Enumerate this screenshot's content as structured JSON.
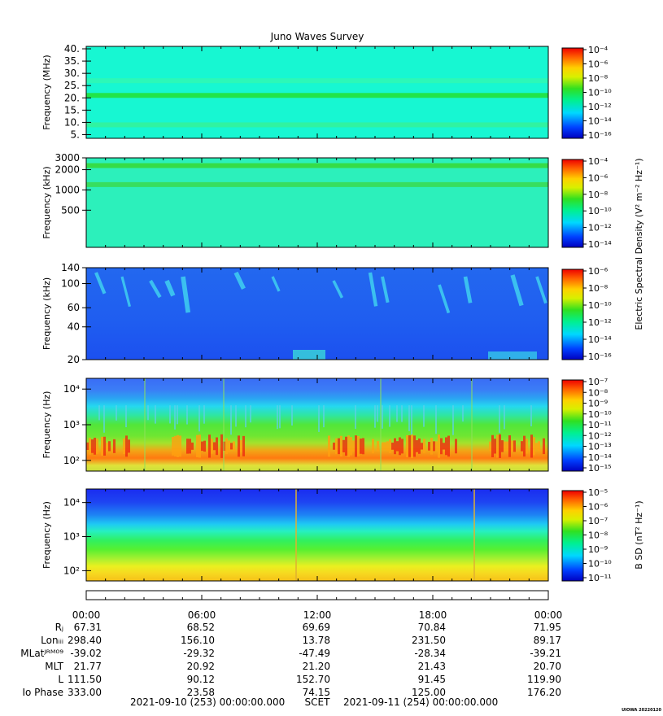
{
  "title": "Juno Waves Survey",
  "footer": {
    "start": "2021-09-10 (253) 00:00:00.000",
    "scet": "SCET",
    "end": "2021-09-11 (254) 00:00:00.000",
    "stamp": "UIOWA 20220120"
  },
  "shared_colorbar_label": "Electric Spectral Density (V² m⁻² Hz⁻¹)",
  "chart_data": [
    {
      "type": "heatmap",
      "ylabel": "Frequency (MHz)",
      "yscale": "linear",
      "ylim": [
        3.5,
        41
      ],
      "yticks": [
        5,
        10,
        15,
        20,
        25,
        30,
        35,
        40
      ],
      "ytick_labels": [
        "5.",
        "10.",
        "15.",
        "20.",
        "25.",
        "30.",
        "35.",
        "40."
      ],
      "colorbar": {
        "labels": [
          "10⁻⁴",
          "10⁻⁶",
          "10⁻⁸",
          "10⁻¹⁰",
          "10⁻¹²",
          "10⁻¹⁴",
          "10⁻¹⁶"
        ]
      },
      "features": [
        {
          "kind": "band",
          "freq": 21,
          "color": "#24e13a"
        },
        {
          "kind": "band",
          "freq": 9,
          "color": "#33f29b"
        },
        {
          "kind": "band",
          "freq": 27,
          "color": "#2ff7b5"
        }
      ],
      "background": "#17f7d2"
    },
    {
      "type": "heatmap",
      "ylabel": "Frequency (kHz)",
      "yscale": "log",
      "ylim": [
        140,
        3000
      ],
      "yticks": [
        500,
        1000,
        2000,
        3000
      ],
      "ytick_labels": [
        "500",
        "1000",
        "2000",
        "3000"
      ],
      "colorbar": {
        "labels": [
          "10⁻⁴",
          "10⁻⁶",
          "10⁻⁸",
          "10⁻¹⁰",
          "10⁻¹²",
          "10⁻¹⁴"
        ]
      },
      "features": [
        {
          "kind": "band",
          "freq": 2300,
          "color": "#37d93b"
        },
        {
          "kind": "band",
          "freq": 1200,
          "color": "#39dc55"
        }
      ],
      "background": "#2cf0bb"
    },
    {
      "type": "heatmap",
      "ylabel": "Frequency (kHz)",
      "yscale": "log",
      "ylim": [
        20,
        140
      ],
      "yticks": [
        20,
        40,
        60,
        100,
        140
      ],
      "ytick_labels": [
        "20",
        "40",
        "60",
        "100",
        "140"
      ],
      "colorbar": {
        "labels": [
          "10⁻⁶",
          "10⁻⁸",
          "10⁻¹⁰",
          "10⁻¹²",
          "10⁻¹⁴",
          "10⁻¹⁶"
        ]
      },
      "background": "#1f64f0"
    },
    {
      "type": "heatmap",
      "ylabel": "Frequency (Hz)",
      "yscale": "log",
      "ylim": [
        50,
        20000
      ],
      "yticks": [
        100,
        1000,
        10000
      ],
      "ytick_labels": [
        "10²",
        "10³",
        "10⁴"
      ],
      "colorbar": {
        "labels": [
          "10⁻⁷",
          "10⁻⁸",
          "10⁻⁹",
          "10⁻¹⁰",
          "10⁻¹¹",
          "10⁻¹²",
          "10⁻¹³",
          "10⁻¹⁴",
          "10⁻¹⁵"
        ]
      },
      "background": "#2a5cf0"
    },
    {
      "type": "heatmap",
      "ylabel": "Frequency (Hz)",
      "yscale": "log",
      "ylim": [
        50,
        25000
      ],
      "yticks": [
        100,
        1000,
        10000
      ],
      "ytick_labels": [
        "10²",
        "10³",
        "10⁴"
      ],
      "colorbar": {
        "labels": [
          "10⁻⁵",
          "10⁻⁶",
          "10⁻⁷",
          "10⁻⁸",
          "10⁻⁹",
          "10⁻¹⁰",
          "10⁻¹¹"
        ],
        "title": "B SD (nT² Hz⁻¹)"
      },
      "background": "#1c3ff0"
    }
  ],
  "time_axis": {
    "labels": [
      "00:00",
      "06:00",
      "12:00",
      "18:00",
      "00:00"
    ],
    "hours": [
      0,
      6,
      12,
      18,
      24
    ]
  },
  "ephemeris": {
    "row_labels": [
      "Rⱼ",
      "Lonᵢᵢᵢ",
      "MLatᴶᴿᴹ⁰⁹",
      "MLT",
      "L",
      "Io Phase"
    ],
    "rows": [
      [
        "67.31",
        "68.52",
        "69.69",
        "70.84",
        "71.95"
      ],
      [
        "298.40",
        "156.10",
        "13.78",
        "231.50",
        "89.17"
      ],
      [
        "-39.02",
        "-29.32",
        "-47.49",
        "-28.34",
        "-39.21"
      ],
      [
        "21.77",
        "20.92",
        "21.20",
        "21.43",
        "20.70"
      ],
      [
        "111.50",
        "90.12",
        "152.70",
        "91.45",
        "119.90"
      ],
      [
        "333.00",
        "23.58",
        "74.15",
        "125.00",
        "176.20"
      ]
    ]
  }
}
